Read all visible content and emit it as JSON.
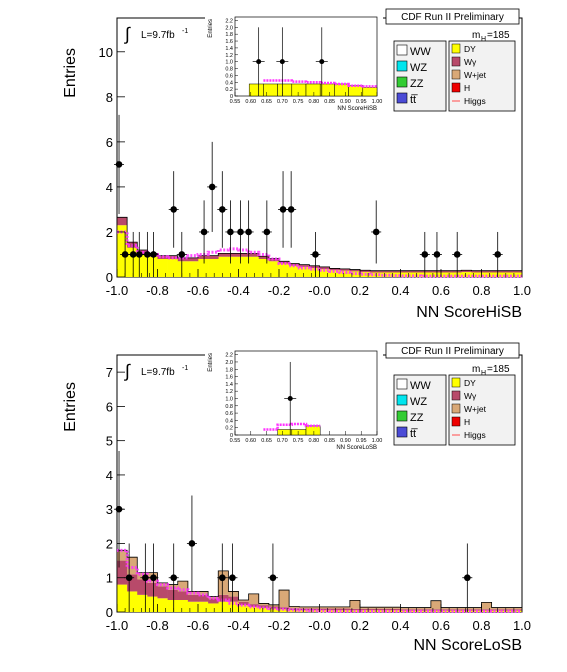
{
  "panels": [
    {
      "name": "HiSB",
      "header": "CDF Run II Preliminary",
      "lumi": "L=9.7fb",
      "lumi_sup": "-1",
      "mass_label": "m",
      "mass_sub": "H",
      "mass_value": "=185",
      "legend_left": [
        {
          "label": "WW",
          "color": "#ffffff"
        },
        {
          "label": "WZ",
          "color": "#00e5ee"
        },
        {
          "label": "ZZ",
          "color": "#33cc33"
        },
        {
          "label": "tt̅",
          "color": "#4b4bd6"
        }
      ],
      "legend_right": [
        {
          "label": "DY",
          "color": "#ffff00"
        },
        {
          "label": "Wγ",
          "color": "#b84a6a"
        },
        {
          "label": "W+jet",
          "color": "#d9a877"
        },
        {
          "label": "H",
          "color": "#ee0000"
        },
        {
          "label": "Higgs",
          "color": "#ff6666",
          "style": "line"
        }
      ],
      "chart_data": {
        "type": "bar",
        "xlabel": "NN ScoreHiSB",
        "ylabel": "Entries",
        "xlim": [
          -1.0,
          1.0
        ],
        "ylim": [
          0,
          11.5
        ],
        "x_ticks": [
          "-1.0",
          "-0.8",
          "-0.6",
          "-0.4",
          "-0.2",
          "-0.0",
          "0.2",
          "0.4",
          "0.6",
          "0.8",
          "1.0"
        ],
        "y_ticks": [
          "0",
          "2",
          "4",
          "6",
          "8",
          "10"
        ],
        "background_series": [
          {
            "name": "DY",
            "color": "#ffff00",
            "values": [
              2.3,
              1.3,
              1.0,
              0.9,
              0.8,
              0.8,
              0.7,
              0.7,
              0.8,
              0.8,
              0.9,
              0.9,
              0.9,
              0.9,
              0.8,
              0.7,
              0.6,
              0.5,
              0.45,
              0.4,
              0.35,
              0.3,
              0.28,
              0.25,
              0.22,
              0.2,
              0.2,
              0.2,
              0.2,
              0.2,
              0.2,
              0.2,
              0.2,
              0.2,
              0.22,
              0.2,
              0.2,
              0.2,
              0.2,
              0.2
            ]
          },
          {
            "name": "Wγ",
            "color": "#b84a6a",
            "values": [
              0.35,
              0.25,
              0.2,
              0.15,
              0.15,
              0.15,
              0.15,
              0.15,
              0.15,
              0.15,
              0.15,
              0.15,
              0.15,
              0.15,
              0.12,
              0.12,
              0.1,
              0.1,
              0.1,
              0.1,
              0.1,
              0.08,
              0.08,
              0.08,
              0.08,
              0.08,
              0.08,
              0.08,
              0.08,
              0.08,
              0.08,
              0.08,
              0.08,
              0.08,
              0.08,
              0.08,
              0.08,
              0.08,
              0.08,
              0.08
            ]
          }
        ],
        "higgs_signal": [
          2.0,
          1.4,
          1.1,
          1.0,
          0.9,
          0.85,
          0.85,
          0.95,
          1.0,
          1.1,
          1.2,
          1.25,
          1.2,
          1.1,
          1.0,
          0.8,
          0.6,
          0.5,
          0.4,
          0.35,
          0.3,
          0.25,
          0.2,
          0.15,
          0.12,
          0.1,
          0.08,
          0.06,
          0.05,
          0.05,
          0.04,
          0.04,
          0.04,
          0.04,
          0.04,
          0.04,
          0.04,
          0.04,
          0.04,
          0.04
        ],
        "data_points": [
          {
            "x": -0.99,
            "y": 5,
            "err": 2.2
          },
          {
            "x": -0.96,
            "y": 1,
            "err": 1.0
          },
          {
            "x": -0.92,
            "y": 1,
            "err": 1.0
          },
          {
            "x": -0.89,
            "y": 1,
            "err": 1.0
          },
          {
            "x": -0.85,
            "y": 1,
            "err": 1.0
          },
          {
            "x": -0.82,
            "y": 1,
            "err": 1.0
          },
          {
            "x": -0.72,
            "y": 3,
            "err": 1.7
          },
          {
            "x": -0.68,
            "y": 1,
            "err": 1.0
          },
          {
            "x": -0.57,
            "y": 2,
            "err": 1.4
          },
          {
            "x": -0.53,
            "y": 4,
            "err": 2.0
          },
          {
            "x": -0.48,
            "y": 3,
            "err": 1.7
          },
          {
            "x": -0.44,
            "y": 2,
            "err": 1.4
          },
          {
            "x": -0.39,
            "y": 2,
            "err": 1.4
          },
          {
            "x": -0.35,
            "y": 2,
            "err": 1.4
          },
          {
            "x": -0.26,
            "y": 2,
            "err": 1.4
          },
          {
            "x": -0.18,
            "y": 3,
            "err": 1.7
          },
          {
            "x": -0.14,
            "y": 3,
            "err": 1.7
          },
          {
            "x": -0.02,
            "y": 1,
            "err": 1.0
          },
          {
            "x": 0.28,
            "y": 2,
            "err": 1.4
          },
          {
            "x": 0.52,
            "y": 1,
            "err": 1.0
          },
          {
            "x": 0.58,
            "y": 1,
            "err": 1.0
          },
          {
            "x": 0.68,
            "y": 1,
            "err": 1.0
          },
          {
            "x": 0.88,
            "y": 1,
            "err": 1.0
          }
        ],
        "inset": {
          "xlabel": "NN ScoreHiSB",
          "ylabel": "Entries",
          "xlim": [
            0.55,
            1.0
          ],
          "ylim": [
            0,
            2.3
          ],
          "x_ticks": [
            "0.55",
            "0.60",
            "0.65",
            "0.70",
            "0.75",
            "0.80",
            "0.85",
            "0.90",
            "0.95",
            "1.00"
          ],
          "y_ticks": [
            "0",
            "0.2",
            "0.4",
            "0.6",
            "0.8",
            "1.0",
            "1.2",
            "1.4",
            "1.6",
            "1.8",
            "2.0",
            "2.2"
          ],
          "background_values": [
            0,
            0.35,
            0.35,
            0.35,
            0.35,
            0.35,
            0.35,
            0.35,
            0.3,
            0.25
          ],
          "higgs_signal": [
            0,
            0,
            0.45,
            0.45,
            0.42,
            0.4,
            0.38,
            0.35,
            0.3,
            0.28
          ],
          "data_points": [
            {
              "x": 0.625,
              "y": 1,
              "err": 1.0
            },
            {
              "x": 0.7,
              "y": 1,
              "err": 1.0
            },
            {
              "x": 0.825,
              "y": 1,
              "err": 1.0
            }
          ]
        }
      }
    },
    {
      "name": "LoSB",
      "header": "CDF Run II Preliminary",
      "lumi": "L=9.7fb",
      "lumi_sup": "-1",
      "mass_label": "m",
      "mass_sub": "H",
      "mass_value": "=185",
      "legend_left": [
        {
          "label": "WW",
          "color": "#ffffff"
        },
        {
          "label": "WZ",
          "color": "#00e5ee"
        },
        {
          "label": "ZZ",
          "color": "#33cc33"
        },
        {
          "label": "tt̅",
          "color": "#4b4bd6"
        }
      ],
      "legend_right": [
        {
          "label": "DY",
          "color": "#ffff00"
        },
        {
          "label": "Wγ",
          "color": "#b84a6a"
        },
        {
          "label": "W+jet",
          "color": "#d9a877"
        },
        {
          "label": "H",
          "color": "#ee0000"
        },
        {
          "label": "Higgs",
          "color": "#ff6666",
          "style": "line"
        }
      ],
      "chart_data": {
        "type": "bar",
        "xlabel": "NN ScoreLoSB",
        "ylabel": "Entries",
        "xlim": [
          -1.0,
          1.0
        ],
        "ylim": [
          0,
          7.5
        ],
        "x_ticks": [
          "-1.0",
          "-0.8",
          "-0.6",
          "-0.4",
          "-0.2",
          "-0.0",
          "0.2",
          "0.4",
          "0.6",
          "0.8",
          "1.0"
        ],
        "y_ticks": [
          "0",
          "1",
          "2",
          "3",
          "4",
          "5",
          "6",
          "7"
        ],
        "background_series": [
          {
            "name": "DY",
            "color": "#ffff00",
            "values": [
              0.8,
              0.6,
              0.5,
              0.45,
              0.4,
              0.35,
              0.35,
              0.3,
              0.3,
              0.25,
              0.3,
              0.3,
              0.2,
              0.15,
              0.12,
              0.1,
              0.08,
              0.06,
              0.05,
              0.05,
              0.05,
              0.05,
              0.05,
              0.05,
              0.05,
              0.05,
              0.05,
              0.05,
              0.04,
              0.04,
              0.04,
              0.04,
              0.04,
              0.04,
              0.04,
              0.04,
              0.04,
              0.04,
              0.04,
              0.04
            ]
          },
          {
            "name": "Wγ",
            "color": "#b84a6a",
            "values": [
              0.7,
              0.5,
              0.45,
              0.4,
              0.35,
              0.3,
              0.25,
              0.2,
              0.2,
              0.15,
              0.2,
              0.15,
              0.1,
              0.08,
              0.08,
              0.06,
              0.06,
              0.05,
              0.05,
              0.05,
              0.05,
              0.05,
              0.05,
              0.04,
              0.04,
              0.04,
              0.04,
              0.04,
              0.04,
              0.04,
              0.04,
              0.04,
              0.04,
              0.04,
              0.04,
              0.04,
              0.04,
              0.04,
              0.04,
              0.04
            ]
          },
          {
            "name": "W+jet",
            "color": "#d9a877",
            "values": [
              0.3,
              0.5,
              0.2,
              0.3,
              0.1,
              0.15,
              0.3,
              0.1,
              0.1,
              0.05,
              0.7,
              0.15,
              0.05,
              0.3,
              0.05,
              0.05,
              0.5,
              0.05,
              0.05,
              0.05,
              0.05,
              0.05,
              0.05,
              0.25,
              0.05,
              0.05,
              0.05,
              0.05,
              0.05,
              0.05,
              0.05,
              0.25,
              0.05,
              0.05,
              0.05,
              0.05,
              0.2,
              0.05,
              0.05,
              0.05
            ]
          }
        ],
        "higgs_signal": [
          1.8,
          1.3,
          1.1,
          0.9,
          0.8,
          0.7,
          0.65,
          0.55,
          0.5,
          0.4,
          0.35,
          0.25,
          0.2,
          0.15,
          0.12,
          0.1,
          0.08,
          0.06,
          0.05,
          0.04,
          0.03,
          0.02,
          0.02,
          0.02,
          0.02,
          0.02,
          0.02,
          0.02,
          0.02,
          0.02,
          0.02,
          0.02,
          0.02,
          0.02,
          0.02,
          0.02,
          0.02,
          0.02,
          0.02,
          0.02
        ],
        "data_points": [
          {
            "x": -0.99,
            "y": 3,
            "err": 1.7
          },
          {
            "x": -0.94,
            "y": 1,
            "err": 1.0
          },
          {
            "x": -0.86,
            "y": 1,
            "err": 1.0
          },
          {
            "x": -0.82,
            "y": 1,
            "err": 1.0
          },
          {
            "x": -0.72,
            "y": 1,
            "err": 1.0
          },
          {
            "x": -0.63,
            "y": 2,
            "err": 1.4
          },
          {
            "x": -0.48,
            "y": 1,
            "err": 1.0
          },
          {
            "x": -0.43,
            "y": 1,
            "err": 1.0
          },
          {
            "x": -0.23,
            "y": 1,
            "err": 1.0
          },
          {
            "x": 0.73,
            "y": 1,
            "err": 1.0
          }
        ],
        "inset": {
          "xlabel": "NN ScoreLoSB",
          "ylabel": "Entries",
          "xlim": [
            0.55,
            1.0
          ],
          "ylim": [
            0,
            2.3
          ],
          "x_ticks": [
            "0.55",
            "0.60",
            "0.65",
            "0.70",
            "0.75",
            "0.80",
            "0.85",
            "0.90",
            "0.95",
            "1.00"
          ],
          "y_ticks": [
            "0",
            "0.2",
            "0.4",
            "0.6",
            "0.8",
            "1.0",
            "1.2",
            "1.4",
            "1.6",
            "1.8",
            "2.0",
            "2.2"
          ],
          "background_values": [
            0,
            0,
            0,
            0.15,
            0.15,
            0.25,
            0,
            0,
            0,
            0
          ],
          "higgs_signal": [
            0,
            0,
            0.15,
            0.28,
            0.3,
            0.25,
            0,
            0,
            0,
            0
          ],
          "data_points": [
            {
              "x": 0.725,
              "y": 1,
              "err": 1.0
            }
          ]
        }
      }
    }
  ]
}
